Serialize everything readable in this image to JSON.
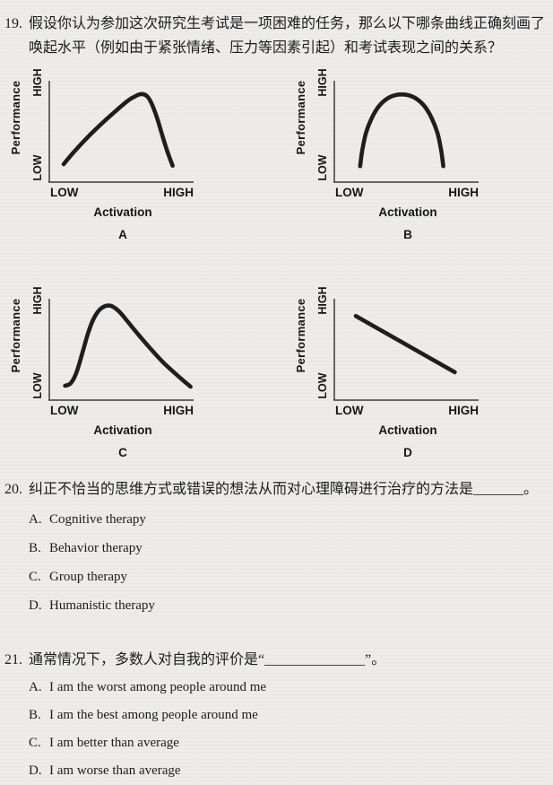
{
  "colors": {
    "paper": "#edeceb",
    "ink": "#1c1c1c",
    "curve": "#1e1e1e"
  },
  "questions": {
    "q19": {
      "number": "19.",
      "lines": [
        "假设你认为参加这次研究生考试是一项困难的任务，那么以下哪条曲线正确刻画了",
        "唤起水平（例如由于紧张情绪、压力等因素引起）和考试表现之间的关系？"
      ]
    },
    "q20": {
      "number": "20.",
      "stem": "纠正不恰当的思维方式或错误的想法从而对心理障碍进行治疗的方法是_______。",
      "options": [
        {
          "letter": "A.",
          "text": "Cognitive therapy"
        },
        {
          "letter": "B.",
          "text": "Behavior therapy"
        },
        {
          "letter": "C.",
          "text": "Group therapy"
        },
        {
          "letter": "D.",
          "text": "Humanistic therapy"
        }
      ]
    },
    "q21": {
      "number": "21.",
      "stem": "通常情况下，多数人对自我的评价是“______________”。",
      "options": [
        {
          "letter": "A.",
          "text": "I am the worst among people around me"
        },
        {
          "letter": "B.",
          "text": "I am the best among people around me"
        },
        {
          "letter": "C.",
          "text": "I am better than average"
        },
        {
          "letter": "D.",
          "text": "I am worse than average"
        }
      ]
    }
  },
  "chart_labels": {
    "ylabel": "Performance",
    "xlabel": "Activation",
    "y_high": "HIGH",
    "y_low": "LOW",
    "x_low": "LOW",
    "x_high": "HIGH"
  },
  "chart_data": [
    {
      "label": "A",
      "type": "line",
      "xlabel": "Activation",
      "ylabel": "Performance",
      "x_ticks": [
        "LOW",
        "HIGH"
      ],
      "y_ticks": [
        "LOW",
        "HIGH"
      ],
      "description": "Inverted-U curve with peak right of center, steep decline at high activation",
      "points": [
        [
          0.1,
          0.18
        ],
        [
          0.17,
          0.3
        ],
        [
          0.26,
          0.44
        ],
        [
          0.36,
          0.58
        ],
        [
          0.46,
          0.71
        ],
        [
          0.55,
          0.82
        ],
        [
          0.61,
          0.87
        ],
        [
          0.645,
          0.885
        ],
        [
          0.68,
          0.865
        ],
        [
          0.71,
          0.8
        ],
        [
          0.75,
          0.65
        ],
        [
          0.79,
          0.46
        ],
        [
          0.83,
          0.28
        ],
        [
          0.86,
          0.165
        ]
      ]
    },
    {
      "label": "B",
      "type": "line",
      "xlabel": "Activation",
      "ylabel": "Performance",
      "x_ticks": [
        "LOW",
        "HIGH"
      ],
      "y_ticks": [
        "LOW",
        "HIGH"
      ],
      "description": "Symmetric inverted-U arch centered at moderate activation",
      "points": [
        [
          0.18,
          0.16
        ],
        [
          0.195,
          0.32
        ],
        [
          0.22,
          0.49
        ],
        [
          0.26,
          0.64
        ],
        [
          0.31,
          0.76
        ],
        [
          0.37,
          0.84
        ],
        [
          0.43,
          0.875
        ],
        [
          0.47,
          0.88
        ],
        [
          0.51,
          0.875
        ],
        [
          0.57,
          0.84
        ],
        [
          0.63,
          0.76
        ],
        [
          0.68,
          0.64
        ],
        [
          0.72,
          0.49
        ],
        [
          0.745,
          0.32
        ],
        [
          0.76,
          0.16
        ]
      ]
    },
    {
      "label": "C",
      "type": "line",
      "xlabel": "Activation",
      "ylabel": "Performance",
      "x_ticks": [
        "LOW",
        "HIGH"
      ],
      "y_ticks": [
        "LOW",
        "HIGH"
      ],
      "description": "Steep rise to early peak (left of center) then gradual decline toward high activation",
      "points": [
        [
          0.11,
          0.145
        ],
        [
          0.15,
          0.17
        ],
        [
          0.19,
          0.28
        ],
        [
          0.23,
          0.47
        ],
        [
          0.27,
          0.67
        ],
        [
          0.31,
          0.82
        ],
        [
          0.36,
          0.92
        ],
        [
          0.42,
          0.95
        ],
        [
          0.48,
          0.9
        ],
        [
          0.54,
          0.8
        ],
        [
          0.62,
          0.66
        ],
        [
          0.71,
          0.51
        ],
        [
          0.8,
          0.37
        ],
        [
          0.9,
          0.24
        ],
        [
          0.985,
          0.135
        ]
      ]
    },
    {
      "label": "D",
      "type": "line",
      "xlabel": "Activation",
      "ylabel": "Performance",
      "x_ticks": [
        "LOW",
        "HIGH"
      ],
      "y_ticks": [
        "LOW",
        "HIGH"
      ],
      "description": "Straight descending line: performance decreases as activation increases",
      "points": [
        [
          0.15,
          0.845
        ],
        [
          0.84,
          0.28
        ]
      ]
    }
  ]
}
